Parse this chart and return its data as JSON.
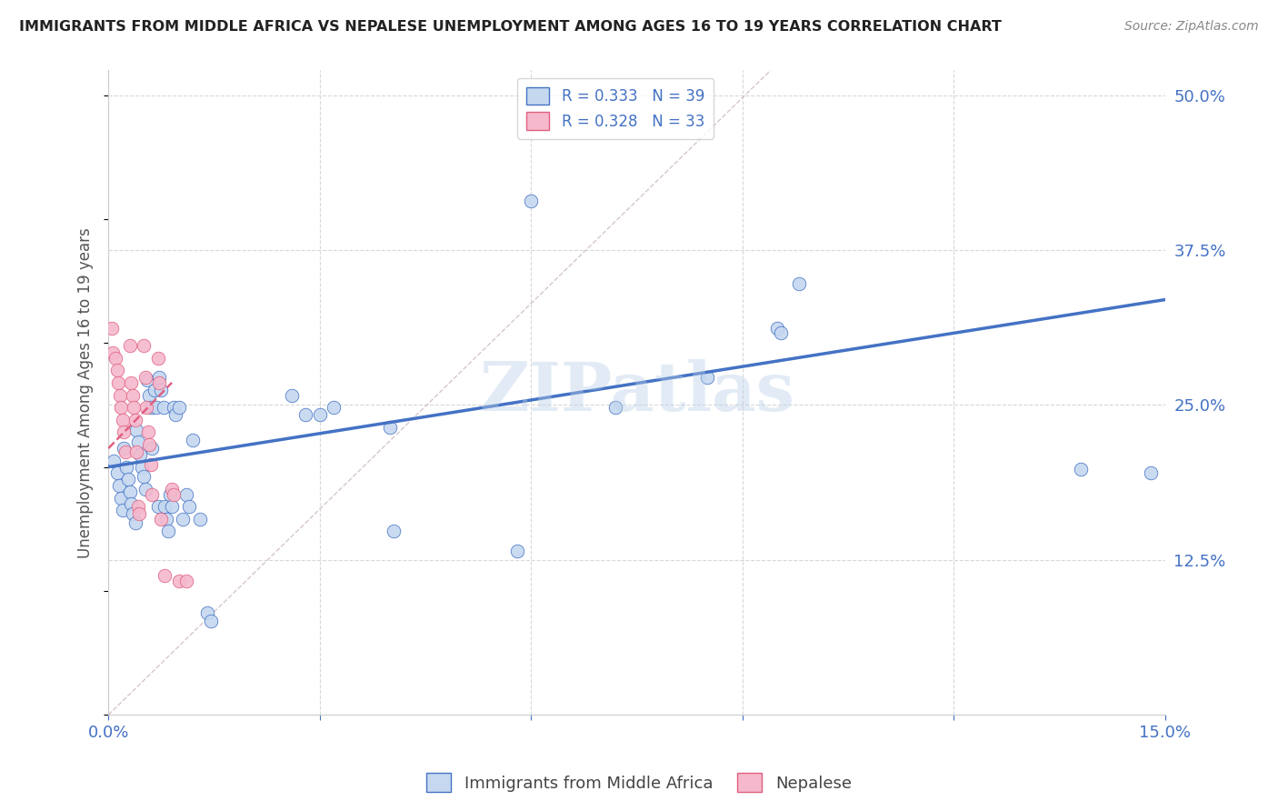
{
  "title": "IMMIGRANTS FROM MIDDLE AFRICA VS NEPALESE UNEMPLOYMENT AMONG AGES 16 TO 19 YEARS CORRELATION CHART",
  "source": "Source: ZipAtlas.com",
  "ylabel": "Unemployment Among Ages 16 to 19 years",
  "xlim": [
    0.0,
    0.15
  ],
  "ylim": [
    0.0,
    0.52
  ],
  "xtick_vals": [
    0.0,
    0.03,
    0.06,
    0.09,
    0.12,
    0.15
  ],
  "xtick_labels": [
    "0.0%",
    "",
    "",
    "",
    "",
    "15.0%"
  ],
  "ytick_vals": [
    0.0,
    0.125,
    0.25,
    0.375,
    0.5
  ],
  "ytick_labels": [
    "",
    "12.5%",
    "25.0%",
    "37.5%",
    "50.0%"
  ],
  "watermark": "ZIPatlas",
  "color_blue": "#c5d8f0",
  "color_pink": "#f5b8cc",
  "color_line_blue": "#4472c4",
  "color_line_pink": "#e06080",
  "color_grid": "#d8d8d8",
  "blue_points": [
    [
      0.0008,
      0.205
    ],
    [
      0.0012,
      0.195
    ],
    [
      0.0015,
      0.185
    ],
    [
      0.0018,
      0.175
    ],
    [
      0.002,
      0.165
    ],
    [
      0.0022,
      0.215
    ],
    [
      0.0025,
      0.2
    ],
    [
      0.0028,
      0.19
    ],
    [
      0.003,
      0.18
    ],
    [
      0.0032,
      0.17
    ],
    [
      0.0035,
      0.162
    ],
    [
      0.0038,
      0.155
    ],
    [
      0.004,
      0.23
    ],
    [
      0.0042,
      0.22
    ],
    [
      0.0045,
      0.21
    ],
    [
      0.0048,
      0.2
    ],
    [
      0.005,
      0.192
    ],
    [
      0.0052,
      0.182
    ],
    [
      0.0055,
      0.27
    ],
    [
      0.0058,
      0.258
    ],
    [
      0.006,
      0.248
    ],
    [
      0.0062,
      0.215
    ],
    [
      0.0065,
      0.262
    ],
    [
      0.0068,
      0.248
    ],
    [
      0.007,
      0.168
    ],
    [
      0.0072,
      0.272
    ],
    [
      0.0075,
      0.262
    ],
    [
      0.0078,
      0.248
    ],
    [
      0.008,
      0.168
    ],
    [
      0.0082,
      0.158
    ],
    [
      0.0085,
      0.148
    ],
    [
      0.0088,
      0.178
    ],
    [
      0.009,
      0.168
    ],
    [
      0.0092,
      0.248
    ],
    [
      0.0095,
      0.242
    ],
    [
      0.01,
      0.248
    ],
    [
      0.0105,
      0.158
    ],
    [
      0.011,
      0.178
    ],
    [
      0.0115,
      0.168
    ],
    [
      0.012,
      0.222
    ],
    [
      0.013,
      0.158
    ],
    [
      0.014,
      0.082
    ],
    [
      0.0145,
      0.076
    ],
    [
      0.026,
      0.258
    ],
    [
      0.028,
      0.242
    ],
    [
      0.03,
      0.242
    ],
    [
      0.032,
      0.248
    ],
    [
      0.04,
      0.232
    ],
    [
      0.0405,
      0.148
    ],
    [
      0.058,
      0.132
    ],
    [
      0.06,
      0.415
    ],
    [
      0.072,
      0.248
    ],
    [
      0.085,
      0.272
    ],
    [
      0.095,
      0.312
    ],
    [
      0.0955,
      0.308
    ],
    [
      0.098,
      0.348
    ],
    [
      0.138,
      0.198
    ],
    [
      0.148,
      0.195
    ]
  ],
  "pink_points": [
    [
      0.0005,
      0.312
    ],
    [
      0.0006,
      0.292
    ],
    [
      0.001,
      0.288
    ],
    [
      0.0012,
      0.278
    ],
    [
      0.0014,
      0.268
    ],
    [
      0.0016,
      0.258
    ],
    [
      0.0018,
      0.248
    ],
    [
      0.002,
      0.238
    ],
    [
      0.0022,
      0.228
    ],
    [
      0.0024,
      0.212
    ],
    [
      0.003,
      0.298
    ],
    [
      0.0032,
      0.268
    ],
    [
      0.0034,
      0.258
    ],
    [
      0.0036,
      0.248
    ],
    [
      0.0038,
      0.238
    ],
    [
      0.004,
      0.212
    ],
    [
      0.0042,
      0.168
    ],
    [
      0.0044,
      0.162
    ],
    [
      0.005,
      0.298
    ],
    [
      0.0052,
      0.272
    ],
    [
      0.0054,
      0.248
    ],
    [
      0.0056,
      0.228
    ],
    [
      0.0058,
      0.218
    ],
    [
      0.006,
      0.202
    ],
    [
      0.0062,
      0.178
    ],
    [
      0.007,
      0.288
    ],
    [
      0.0072,
      0.268
    ],
    [
      0.0074,
      0.158
    ],
    [
      0.008,
      0.112
    ],
    [
      0.009,
      0.182
    ],
    [
      0.0092,
      0.178
    ],
    [
      0.01,
      0.108
    ],
    [
      0.011,
      0.108
    ]
  ],
  "blue_trendline_x": [
    0.0,
    0.15
  ],
  "blue_trendline_y": [
    0.2,
    0.335
  ],
  "pink_trendline_x": [
    0.0,
    0.009
  ],
  "pink_trendline_y": [
    0.215,
    0.268
  ],
  "diag_line_x": [
    0.0,
    0.094
  ],
  "diag_line_y": [
    0.0,
    0.52
  ]
}
